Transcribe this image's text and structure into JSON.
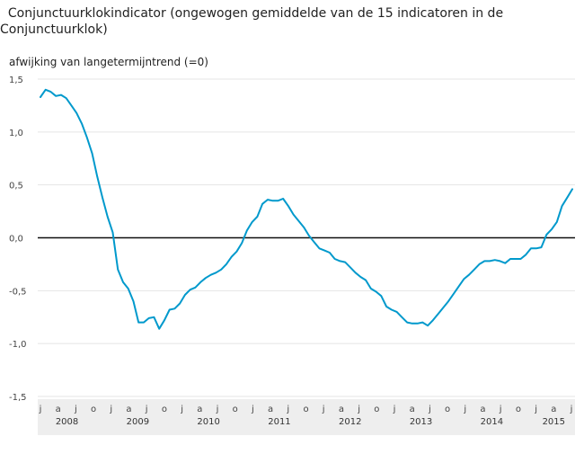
{
  "chart_data": {
    "type": "line",
    "title": "  Conjunctuurklokindicator (ongewogen gemiddelde van de 15 indicatoren in de\nConjunctuurklok)",
    "ylabel": "afwijking van langetermijntrend (=0)",
    "ylim": [
      -1.5,
      1.5
    ],
    "yticks": [
      "1,5",
      "1,0",
      "0,5",
      "0,0",
      "-0,5",
      "-1,0",
      "-1,5"
    ],
    "month_ticks": [
      "j",
      "a",
      "j",
      "o",
      "j",
      "a",
      "j",
      "o",
      "j",
      "a",
      "j",
      "o",
      "j",
      "a",
      "j",
      "o",
      "j",
      "a",
      "j",
      "o",
      "j",
      "a",
      "j",
      "o",
      "j",
      "a",
      "j",
      "o",
      "j",
      "a",
      "j"
    ],
    "years": [
      "2008",
      "2009",
      "2010",
      "2011",
      "2012",
      "2013",
      "2014",
      "2015"
    ],
    "line_color": "#0099cc",
    "series": [
      {
        "values": [
          1.33,
          1.4,
          1.38,
          1.34,
          1.35,
          1.32,
          1.25,
          1.18,
          1.08,
          0.95,
          0.8,
          0.58,
          0.38,
          0.2,
          0.05,
          -0.3,
          -0.42,
          -0.48,
          -0.6,
          -0.8,
          -0.8,
          -0.76,
          -0.75,
          -0.86,
          -0.78,
          -0.68,
          -0.67,
          -0.62,
          -0.54,
          -0.49,
          -0.47,
          -0.42,
          -0.38,
          -0.35,
          -0.33,
          -0.3,
          -0.25,
          -0.18,
          -0.13,
          -0.05,
          0.07,
          0.15,
          0.2,
          0.32,
          0.36,
          0.35,
          0.35,
          0.37,
          0.3,
          0.22,
          0.16,
          0.1,
          0.02,
          -0.04,
          -0.1,
          -0.12,
          -0.14,
          -0.2,
          -0.22,
          -0.23,
          -0.28,
          -0.33,
          -0.37,
          -0.4,
          -0.48,
          -0.51,
          -0.55,
          -0.65,
          -0.68,
          -0.7,
          -0.75,
          -0.8,
          -0.81,
          -0.81,
          -0.8,
          -0.83,
          -0.78,
          -0.72,
          -0.66,
          -0.6,
          -0.53,
          -0.46,
          -0.39,
          -0.35,
          -0.3,
          -0.25,
          -0.22,
          -0.22,
          -0.21,
          -0.22,
          -0.24,
          -0.2,
          -0.2,
          -0.2,
          -0.16,
          -0.1,
          -0.1,
          -0.09,
          0.03,
          0.08,
          0.15,
          0.3,
          0.38,
          0.46
        ]
      }
    ]
  }
}
